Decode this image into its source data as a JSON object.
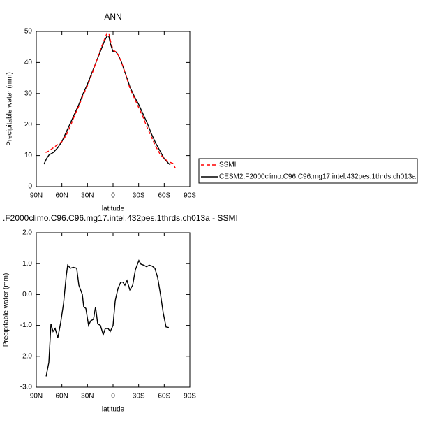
{
  "chart_data": [
    {
      "type": "line",
      "title": "ANN",
      "x_label": "latitude",
      "y_label": "Precipitable water (mm)",
      "xlim": [
        90,
        -90
      ],
      "ylim": [
        0,
        50
      ],
      "xticks": [
        {
          "value": 90,
          "label": "90N"
        },
        {
          "value": 60,
          "label": "60N"
        },
        {
          "value": 30,
          "label": "30N"
        },
        0,
        {
          "value": -30,
          "label": "30S"
        },
        {
          "value": -60,
          "label": "60S"
        },
        {
          "value": -90,
          "label": "90S"
        }
      ],
      "yticks": [
        0,
        10,
        20,
        30,
        40,
        50
      ],
      "legend": "right",
      "series": [
        {
          "name": "SSMI",
          "color": "#ff0000",
          "dash": true,
          "x": [
            79,
            75,
            70,
            65,
            60,
            55,
            50,
            45,
            40,
            35,
            30,
            25,
            20,
            15,
            10,
            7,
            5,
            3,
            0,
            -3,
            -6,
            -10,
            -15,
            -20,
            -25,
            -30,
            -35,
            -40,
            -45,
            -50,
            -55,
            -60,
            -65,
            -70,
            -73
          ],
          "values": [
            11,
            11.5,
            12.5,
            13.5,
            14.5,
            16.5,
            19.5,
            23,
            26,
            29.5,
            32.5,
            36,
            40,
            44,
            47.5,
            49.5,
            49.5,
            47,
            44,
            43.5,
            42.5,
            40,
            36,
            31.5,
            28.5,
            25.5,
            22.5,
            19,
            16,
            13,
            10.5,
            9,
            8,
            7.5,
            6
          ]
        },
        {
          "name": "CESM2.F2000climo.C96.C96.mg17.intel.432pes.1thrds.ch013a",
          "color": "#000000",
          "dash": false,
          "x": [
            81,
            78,
            75,
            70,
            65,
            60,
            55,
            50,
            45,
            40,
            35,
            30,
            25,
            20,
            15,
            10,
            7,
            5,
            3,
            0,
            -3,
            -6,
            -10,
            -15,
            -20,
            -25,
            -30,
            -35,
            -40,
            -45,
            -50,
            -55,
            -60,
            -65,
            -67
          ],
          "values": [
            7.2,
            9,
            10.2,
            11,
            12.5,
            14.5,
            17.5,
            20.5,
            23.5,
            26.5,
            30,
            33,
            36.5,
            40,
            43.5,
            47,
            48.5,
            48.5,
            46,
            43.5,
            43.5,
            42.5,
            40,
            36,
            32,
            29,
            26.5,
            23.5,
            20.5,
            17,
            14,
            11.5,
            9,
            7.5,
            7
          ]
        }
      ]
    },
    {
      "type": "line",
      "title": ".F2000climo.C96.C96.mg17.intel.432pes.1thrds.ch013a - SSMI",
      "x_label": "latitude",
      "y_label": "Precipitable water (mm)",
      "xlim": [
        90,
        -90
      ],
      "ylim": [
        -3,
        2
      ],
      "xticks": [
        {
          "value": 90,
          "label": "90N"
        },
        {
          "value": 60,
          "label": "60N"
        },
        {
          "value": 30,
          "label": "30N"
        },
        0,
        {
          "value": -30,
          "label": "30S"
        },
        {
          "value": -60,
          "label": "60S"
        },
        {
          "value": -90,
          "label": "90S"
        }
      ],
      "yticks": [
        {
          "value": 2,
          "label": "2.0"
        },
        {
          "value": 1,
          "label": "1.0"
        },
        {
          "value": 0,
          "label": "0.0"
        },
        {
          "value": -1,
          "label": "-1.0"
        },
        {
          "value": -2,
          "label": "-2.0"
        },
        {
          "value": -3,
          "label": "-3.0"
        }
      ],
      "color": "#000000",
      "x": [
        78.5,
        75.3,
        72.8,
        70.4,
        67.9,
        64.7,
        61.4,
        58.1,
        54.9,
        53.2,
        49.9,
        46.6,
        42.6,
        40.1,
        36,
        34.4,
        31.9,
        28.7,
        26.2,
        22.9,
        20.5,
        18,
        14.8,
        11.5,
        9.1,
        5.8,
        3.3,
        0,
        -2.5,
        -5.8,
        -9,
        -11.5,
        -13.9,
        -16.4,
        -19.7,
        -23,
        -26.2,
        -30.3,
        -32.7,
        -36,
        -39.3,
        -42.5,
        -45.8,
        -49,
        -52.3,
        -55.6,
        -58.8,
        -62.1,
        -65.4
      ],
      "values": [
        -2.65,
        -2.2,
        -0.95,
        -1.2,
        -1.1,
        -1.4,
        -0.9,
        -0.3,
        0.6,
        0.95,
        0.85,
        0.88,
        0.85,
        0.3,
        0,
        -0.4,
        -0.45,
        -1,
        -0.85,
        -0.8,
        -0.4,
        -0.95,
        -1,
        -1.3,
        -1.1,
        -1.1,
        -1.2,
        -1,
        -0.2,
        0.2,
        0.4,
        0.4,
        0.3,
        0.45,
        0.15,
        0.3,
        0.8,
        1.1,
        0.98,
        0.95,
        0.9,
        0.95,
        0.92,
        0.85,
        0.55,
        0,
        -0.6,
        -1.05,
        -1.07
      ]
    }
  ]
}
